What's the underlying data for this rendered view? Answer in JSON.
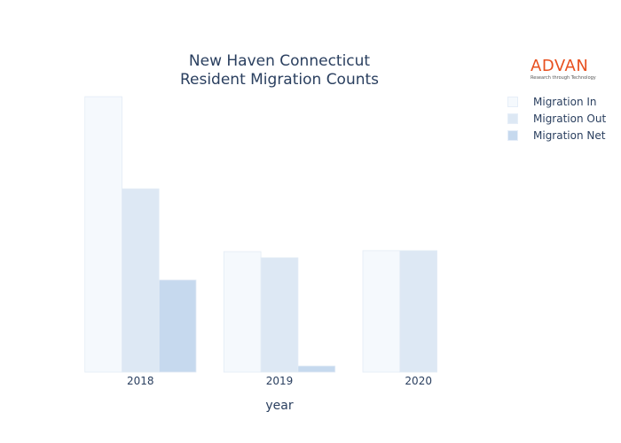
{
  "chart_data": {
    "type": "bar",
    "title": [
      "New Haven Connecticut",
      "Resident Migration Counts"
    ],
    "xlabel": "year",
    "ylabel": "",
    "categories": [
      "2018",
      "2019",
      "2020"
    ],
    "series": [
      {
        "name": "Migration In",
        "values": [
          2720,
          1190,
          1200
        ],
        "color": "#f5f9fd"
      },
      {
        "name": "Migration Out",
        "values": [
          1810,
          1130,
          1200
        ],
        "color": "#dde8f4"
      },
      {
        "name": "Migration Net",
        "values": [
          910,
          60,
          0
        ],
        "color": "#c6d9ee"
      }
    ],
    "ylim": [
      0,
      2800
    ],
    "yaxis_visible": false,
    "grid": false,
    "legend_position": "top-right"
  },
  "brand": {
    "name": "ADVAN",
    "tagline": "Research through Technology",
    "color": "#e8501f"
  }
}
